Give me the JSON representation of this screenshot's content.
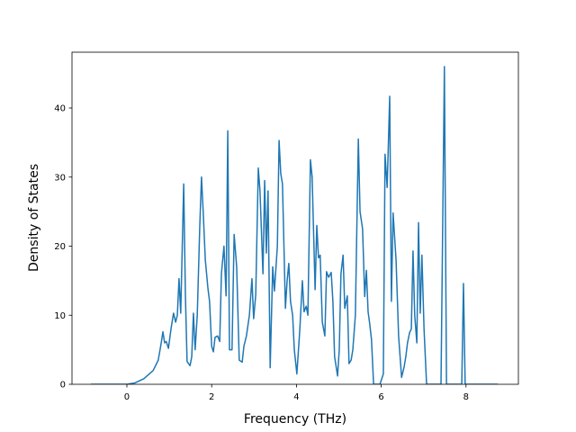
{
  "chart_data": {
    "type": "line",
    "x_label": "Frequency (THz)",
    "y_label": "Density of States",
    "xlim": [
      -1.295,
      9.236
    ],
    "ylim": [
      0,
      48.08
    ],
    "xticks": [
      0,
      2,
      4,
      6,
      8
    ],
    "yticks": [
      0,
      10,
      20,
      30,
      40
    ],
    "series": [
      {
        "color": "#1f77b4",
        "x": [
          -0.85,
          0,
          0.19,
          0.4,
          0.62,
          0.74,
          0.81,
          0.85,
          0.89,
          0.93,
          0.98,
          1.04,
          1.1,
          1.15,
          1.19,
          1.23,
          1.27,
          1.34,
          1.38,
          1.42,
          1.49,
          1.53,
          1.57,
          1.61,
          1.66,
          1.72,
          1.76,
          1.8,
          1.85,
          1.91,
          1.95,
          2.0,
          2.04,
          2.08,
          2.14,
          2.19,
          2.23,
          2.29,
          2.34,
          2.38,
          2.42,
          2.48,
          2.53,
          2.59,
          2.65,
          2.72,
          2.76,
          2.82,
          2.89,
          2.95,
          2.99,
          3.04,
          3.1,
          3.14,
          3.21,
          3.25,
          3.29,
          3.33,
          3.38,
          3.44,
          3.48,
          3.55,
          3.59,
          3.63,
          3.67,
          3.74,
          3.78,
          3.82,
          3.86,
          3.91,
          3.95,
          4.01,
          4.08,
          4.14,
          4.18,
          4.23,
          4.27,
          4.33,
          4.37,
          4.44,
          4.48,
          4.52,
          4.56,
          4.61,
          4.67,
          4.71,
          4.76,
          4.82,
          4.86,
          4.9,
          4.97,
          5.01,
          5.05,
          5.1,
          5.14,
          5.2,
          5.24,
          5.29,
          5.33,
          5.39,
          5.46,
          5.5,
          5.56,
          5.61,
          5.65,
          5.69,
          5.73,
          5.77,
          5.82,
          5.97,
          6.05,
          6.09,
          6.14,
          6.2,
          6.24,
          6.28,
          6.35,
          6.41,
          6.48,
          6.54,
          6.58,
          6.62,
          6.67,
          6.71,
          6.75,
          6.79,
          6.84,
          6.88,
          6.92,
          6.96,
          7.01,
          7.07,
          7.41,
          7.49,
          7.54,
          7.9,
          7.94,
          7.98,
          8.75
        ],
        "values": [
          0,
          0,
          0.2,
          0.8,
          2,
          3.5,
          6,
          7.6,
          6,
          6.2,
          5.2,
          8,
          10.3,
          9,
          10,
          15.3,
          10.3,
          29,
          13,
          3.3,
          2.7,
          4,
          10.3,
          5,
          10,
          23,
          30,
          25,
          18,
          14,
          12,
          5.5,
          4.7,
          6.8,
          7,
          6.2,
          16,
          20,
          12.8,
          36.7,
          5,
          5,
          21.7,
          17,
          3.5,
          3.2,
          5.5,
          7,
          10,
          15.3,
          9.5,
          13,
          31.3,
          28,
          16,
          29.5,
          19,
          28,
          2.4,
          17,
          13.5,
          20,
          35.3,
          30.5,
          29,
          11,
          15,
          17.5,
          12,
          10,
          5,
          1.5,
          8,
          15,
          10.5,
          11.3,
          10,
          32.5,
          30,
          13.7,
          23,
          18.3,
          18.7,
          9,
          7,
          16.3,
          15.5,
          16.2,
          12,
          4,
          1.2,
          5,
          16,
          18.7,
          11,
          12.8,
          3,
          3.5,
          5,
          10,
          35.5,
          25,
          22.5,
          12.7,
          16.5,
          10.5,
          8.7,
          6.5,
          0,
          0,
          1.5,
          33.3,
          28.5,
          41.7,
          12,
          24.8,
          18,
          7,
          1,
          2.5,
          4,
          6,
          7.5,
          8,
          19.3,
          10,
          6,
          23.4,
          10.3,
          18.7,
          8,
          0,
          0,
          46,
          0,
          0,
          14.6,
          0,
          0
        ]
      }
    ]
  }
}
